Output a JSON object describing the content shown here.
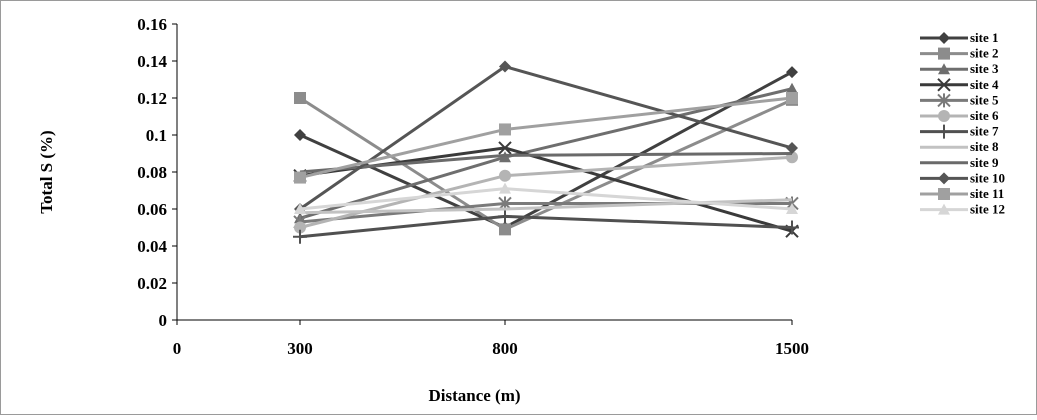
{
  "chart_data": {
    "type": "line",
    "title": "",
    "xlabel": "Distance (m)",
    "ylabel": "Total S (%)",
    "x": [
      300,
      800,
      1500
    ],
    "xlim": [
      0,
      1500
    ],
    "x_tick_labels": [
      "0",
      "300",
      "800",
      "1500"
    ],
    "ylim": [
      0,
      0.16
    ],
    "y_ticks": [
      0,
      0.02,
      0.04,
      0.06,
      0.08,
      0.1,
      0.12,
      0.14,
      0.16
    ],
    "y_tick_labels": [
      "0",
      "0.02",
      "0.04",
      "0.06",
      "0.08",
      "0.1",
      "0.12",
      "0.14",
      "0.16"
    ],
    "grid": false,
    "legend_position": "right",
    "series": [
      {
        "name": "site 1",
        "values": [
          0.1,
          0.05,
          0.134
        ],
        "marker": "diamond",
        "color": "#404040"
      },
      {
        "name": "site 2",
        "values": [
          0.12,
          0.049,
          0.119
        ],
        "marker": "square",
        "color": "#8c8c8c"
      },
      {
        "name": "site 3",
        "values": [
          0.055,
          0.088,
          0.125
        ],
        "marker": "triangle",
        "color": "#6e6e6e"
      },
      {
        "name": "site 4",
        "values": [
          0.078,
          0.093,
          0.048
        ],
        "marker": "x",
        "color": "#3a3a3a"
      },
      {
        "name": "site 5",
        "values": [
          0.053,
          0.063,
          0.063
        ],
        "marker": "star",
        "color": "#7a7a7a"
      },
      {
        "name": "site 6",
        "values": [
          0.05,
          0.078,
          0.088
        ],
        "marker": "circle",
        "color": "#b4b4b4"
      },
      {
        "name": "site 7",
        "values": [
          0.045,
          0.056,
          0.05
        ],
        "marker": "plus",
        "color": "#505050"
      },
      {
        "name": "site 8",
        "values": [
          0.058,
          0.06,
          0.065
        ],
        "marker": "none",
        "color": "#c2c2c2"
      },
      {
        "name": "site 9",
        "values": [
          0.08,
          0.089,
          0.09
        ],
        "marker": "none",
        "color": "#6a6a6a"
      },
      {
        "name": "site 10",
        "values": [
          0.06,
          0.137,
          0.093
        ],
        "marker": "diamond",
        "color": "#555555"
      },
      {
        "name": "site 11",
        "values": [
          0.077,
          0.103,
          0.12
        ],
        "marker": "square",
        "color": "#a0a0a0"
      },
      {
        "name": "site 12",
        "values": [
          0.06,
          0.071,
          0.06
        ],
        "marker": "triangle",
        "color": "#d6d6d6"
      }
    ]
  }
}
